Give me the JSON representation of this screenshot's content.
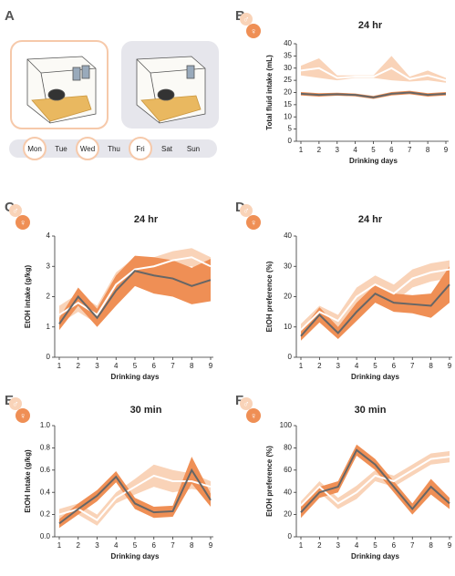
{
  "panel_a": {
    "label": "A",
    "days": [
      {
        "label": "Mon",
        "drinking": true
      },
      {
        "label": "Tue",
        "drinking": false
      },
      {
        "label": "Wed",
        "drinking": true
      },
      {
        "label": "Thu",
        "drinking": false
      },
      {
        "label": "Fri",
        "drinking": true
      },
      {
        "label": "Sat",
        "drinking": false
      },
      {
        "label": "Sun",
        "drinking": false
      }
    ]
  },
  "chart_data": [
    {
      "type": "line",
      "panel": "B",
      "title": "24 hr",
      "xlabel": "Drinking days",
      "ylabel": "Total fluid intake (mL)",
      "x": [
        1,
        2,
        3,
        4,
        5,
        6,
        7,
        8,
        9
      ],
      "xlim": [
        1,
        9
      ],
      "xticks": [
        1,
        2,
        3,
        4,
        5,
        6,
        7,
        8,
        9
      ],
      "ylim": [
        0,
        40
      ],
      "yticks": [
        0,
        5,
        10,
        15,
        20,
        25,
        30,
        35,
        40
      ],
      "series": [
        {
          "name": "♂",
          "color": "#f9d3b8",
          "line_color": "#ffffff",
          "values": [
            29,
            30,
            26,
            26.5,
            26.5,
            30,
            25.5,
            27,
            25
          ],
          "errors": [
            2,
            4,
            1,
            0.5,
            0.5,
            5,
            1,
            2,
            1
          ]
        },
        {
          "name": "♀",
          "color": "#ef8f55",
          "line_color": "#666666",
          "values": [
            19.5,
            19,
            19.3,
            19,
            18,
            19.5,
            20,
            19,
            19.5
          ],
          "errors": [
            0.7,
            0.7,
            0.6,
            0.6,
            0.6,
            0.7,
            0.7,
            0.7,
            0.7
          ]
        }
      ]
    },
    {
      "type": "line",
      "panel": "C",
      "title": "24 hr",
      "xlabel": "Drinking days",
      "ylabel": "EtOH intake (g/kg)",
      "x": [
        1,
        2,
        3,
        4,
        5,
        6,
        7,
        8,
        9
      ],
      "xlim": [
        1,
        9
      ],
      "xticks": [
        1,
        2,
        3,
        4,
        5,
        6,
        7,
        8,
        9
      ],
      "ylim": [
        0,
        4
      ],
      "yticks": [
        0,
        1,
        2,
        3,
        4
      ],
      "series": [
        {
          "name": "♂",
          "color": "#f9d3b8",
          "line_color": "#ffffff",
          "values": [
            1.4,
            1.8,
            1.4,
            2.4,
            2.9,
            3.0,
            3.2,
            3.3,
            3.0
          ],
          "errors": [
            0.3,
            0.3,
            0.3,
            0.4,
            0.4,
            0.3,
            0.3,
            0.3,
            0.3
          ]
        },
        {
          "name": "♀",
          "color": "#ef8f55",
          "line_color": "#666666",
          "values": [
            1.1,
            2.0,
            1.3,
            2.2,
            2.85,
            2.7,
            2.6,
            2.35,
            2.55
          ],
          "errors": [
            0.2,
            0.3,
            0.3,
            0.5,
            0.5,
            0.6,
            0.6,
            0.6,
            0.7
          ]
        }
      ]
    },
    {
      "type": "line",
      "panel": "D",
      "title": "24 hr",
      "xlabel": "Drinking days",
      "ylabel": "EtOH preference (%)",
      "x": [
        1,
        2,
        3,
        4,
        5,
        6,
        7,
        8,
        9
      ],
      "xlim": [
        1,
        9
      ],
      "xticks": [
        1,
        2,
        3,
        4,
        5,
        6,
        7,
        8,
        9
      ],
      "ylim": [
        0,
        40
      ],
      "yticks": [
        0,
        10,
        20,
        30,
        40
      ],
      "series": [
        {
          "name": "♂",
          "color": "#f9d3b8",
          "line_color": "#ffffff",
          "values": [
            9,
            15,
            12,
            20,
            24,
            21,
            26,
            28,
            29
          ],
          "errors": [
            2,
            2,
            2,
            3,
            3,
            3,
            3,
            3,
            3
          ]
        },
        {
          "name": "♀",
          "color": "#ef8f55",
          "line_color": "#666666",
          "values": [
            7,
            14,
            8,
            15,
            21,
            18,
            17.5,
            17,
            24
          ],
          "errors": [
            1.5,
            2.5,
            2,
            3,
            3,
            3,
            3,
            4,
            6
          ]
        }
      ]
    },
    {
      "type": "line",
      "panel": "E",
      "title": "30 min",
      "xlabel": "Drinking days",
      "ylabel": "EtOH Intake (g/kg)",
      "x": [
        1,
        2,
        3,
        4,
        5,
        6,
        7,
        8,
        9
      ],
      "xlim": [
        1,
        9
      ],
      "xticks": [
        1,
        2,
        3,
        4,
        5,
        6,
        7,
        8,
        9
      ],
      "ylim": [
        0,
        1
      ],
      "yticks": [
        {
          "value": 0,
          "label": "0.0"
        },
        0.2,
        0.4,
        0.6,
        0.8,
        {
          "value": 1,
          "label": "1.0"
        }
      ],
      "series": [
        {
          "name": "♂",
          "color": "#f9d3b8",
          "line_color": "#ffffff",
          "values": [
            0.2,
            0.25,
            0.15,
            0.35,
            0.45,
            0.55,
            0.5,
            0.5,
            0.45
          ],
          "errors": [
            0.05,
            0.05,
            0.05,
            0.05,
            0.07,
            0.1,
            0.1,
            0.07,
            0.05
          ]
        },
        {
          "name": "♀",
          "color": "#ef8f55",
          "line_color": "#666666",
          "values": [
            0.12,
            0.25,
            0.37,
            0.54,
            0.3,
            0.22,
            0.23,
            0.6,
            0.33
          ],
          "errors": [
            0.04,
            0.05,
            0.05,
            0.05,
            0.05,
            0.05,
            0.05,
            0.12,
            0.06
          ]
        }
      ]
    },
    {
      "type": "line",
      "panel": "F",
      "title": "30 min",
      "xlabel": "Drinking days",
      "ylabel": "EtOH preference (%)",
      "x": [
        1,
        2,
        3,
        4,
        5,
        6,
        7,
        8,
        9
      ],
      "xlim": [
        1,
        9
      ],
      "xticks": [
        1,
        2,
        3,
        4,
        5,
        6,
        7,
        8,
        9
      ],
      "ylim": [
        0,
        100
      ],
      "yticks": [
        0,
        20,
        40,
        60,
        80,
        100
      ],
      "series": [
        {
          "name": "♂",
          "color": "#f9d3b8",
          "line_color": "#ffffff",
          "values": [
            28,
            45,
            30,
            40,
            55,
            50,
            60,
            70,
            72
          ],
          "errors": [
            4,
            5,
            5,
            6,
            5,
            5,
            5,
            5,
            5
          ]
        },
        {
          "name": "♀",
          "color": "#ef8f55",
          "line_color": "#666666",
          "values": [
            22,
            40,
            45,
            78,
            65,
            45,
            25,
            45,
            30
          ],
          "errors": [
            5,
            5,
            5,
            5,
            5,
            5,
            5,
            7,
            5
          ]
        }
      ]
    }
  ]
}
